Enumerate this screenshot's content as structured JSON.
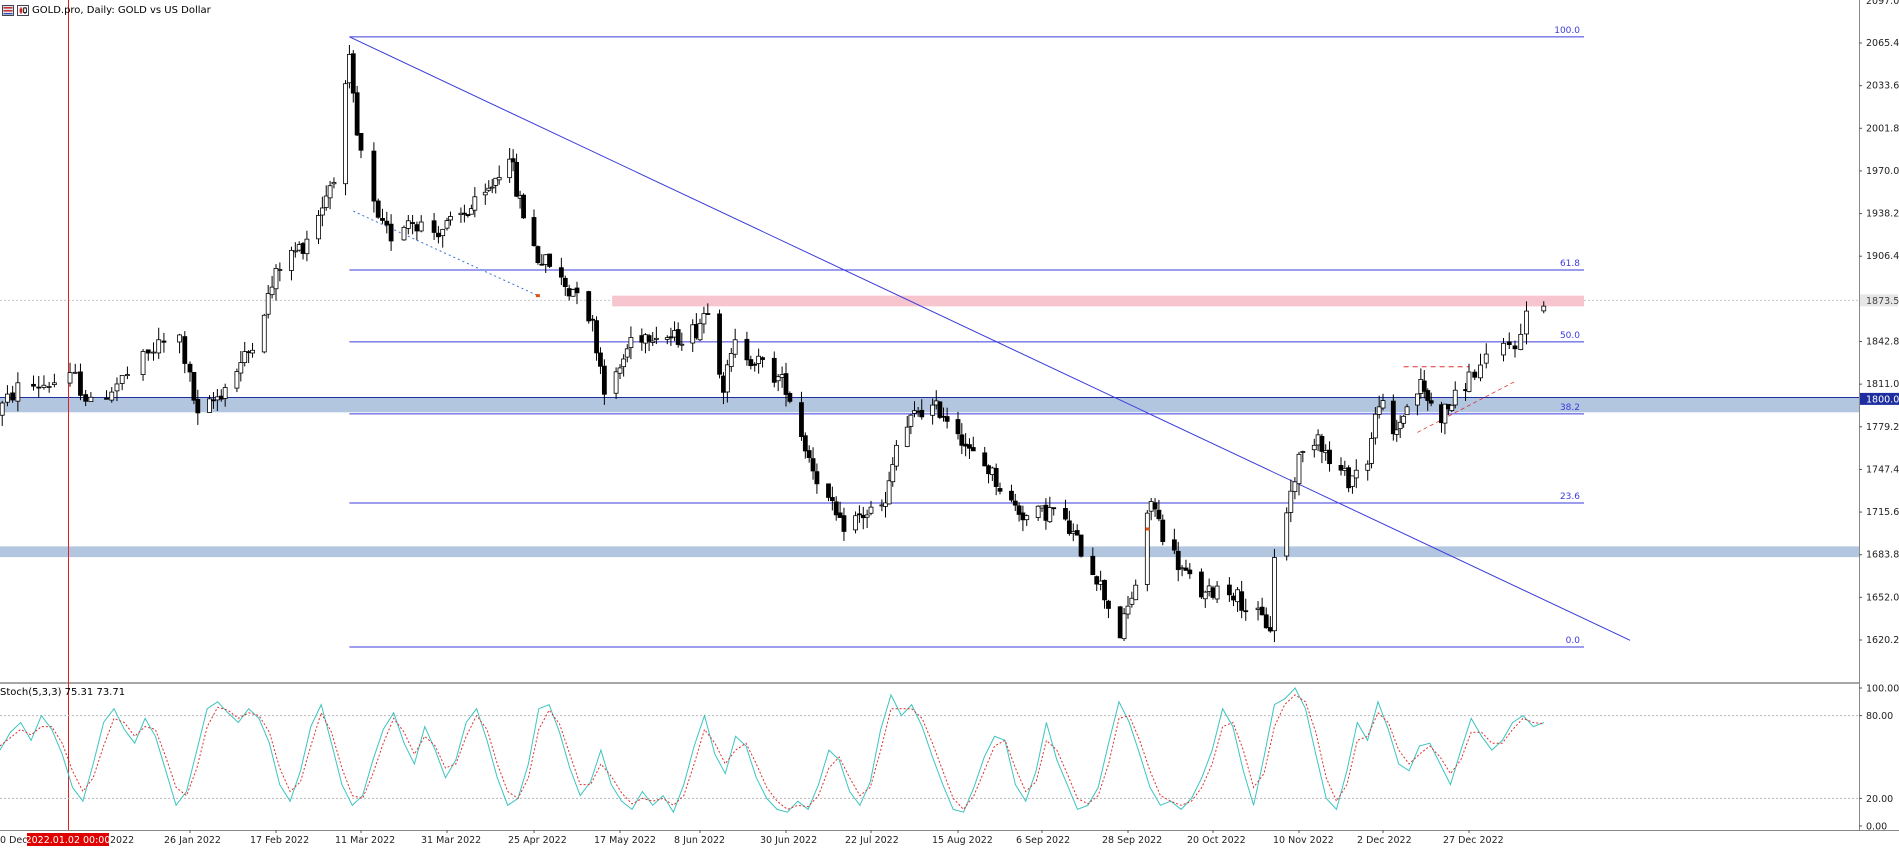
{
  "window": {
    "title": "GOLD.pro, Daily:  GOLD vs US Dollar",
    "symbol_icon": "grid-flag-icon",
    "chart_icon": "candles-chart-icon"
  },
  "colors": {
    "background": "#ffffff",
    "fib": "#3b3bdc",
    "trendline": "#3b3bdc",
    "zone_pink": "#f7c2cb",
    "zone_blue": "#aec3de",
    "crosshair": "#e02020",
    "stoch_main": "#3cc5c0",
    "stoch_signal": "#e03030",
    "candle_bull_fill": "#ffffff",
    "candle_bear_fill": "#000000",
    "price_tag_bg": "#1e2ea0",
    "date_tag_bg": "#e00000"
  },
  "chart_data": [
    {
      "type": "candlestick",
      "title": "GOLD.pro, Daily:  GOLD vs US Dollar",
      "ylim": [
        1590,
        2097
      ],
      "y_tick_labels": [
        "2097.00",
        "2065.40",
        "2033.60",
        "2001.80",
        "1970.00",
        "1938.20",
        "1906.40",
        "1873.50",
        "1842.80",
        "1811.00",
        "1800.00",
        "1779.20",
        "1747.40",
        "1715.60",
        "1683.80",
        "1652.00",
        "1620.20"
      ],
      "y_ticks": [
        2065.4,
        2033.6,
        2001.8,
        1970.0,
        1938.2,
        1906.4,
        1842.8,
        1811.0,
        1779.2,
        1747.4,
        1715.6,
        1683.8,
        1652.0,
        1620.2
      ],
      "x_tick_labels": [
        "0 Dec",
        "2022.01.02 00:00",
        "2022",
        "26 Jan 2022",
        "17 Feb 2022",
        "11 Mar 2022",
        "31 Mar 2022",
        "25 Apr 2022",
        "17 May 2022",
        "8 Jun 2022",
        "30 Jun 2022",
        "22 Jul 2022",
        "15 Aug 2022",
        "6 Sep 2022",
        "28 Sep 2022",
        "20 Oct 2022",
        "10 Nov 2022",
        "2 Dec 2022",
        "27 Dec 2022"
      ],
      "current_price_label": "1873.50",
      "level_label": "1800.00",
      "crosshair_date": "2022.01.02 00:00",
      "fibonacci": {
        "high": 2070,
        "low": 1615,
        "levels": [
          {
            "label": "100.0",
            "price": 2070.0
          },
          {
            "label": "61.8",
            "price": 1896.1
          },
          {
            "label": "50.0",
            "price": 1842.5
          },
          {
            "label": "38.2",
            "price": 1788.8
          },
          {
            "label": "23.6",
            "price": 1722.4
          },
          {
            "label": "0.0",
            "price": 1615.0
          }
        ]
      },
      "zones": [
        {
          "color": "pink",
          "from": 1869,
          "to": 1877
        },
        {
          "color": "blue",
          "from": 1790,
          "to": 1801
        },
        {
          "color": "blue",
          "from": 1682,
          "to": 1690
        }
      ],
      "trendline": {
        "start_date": "2022-03-08",
        "start_price": 2070,
        "end_date": "2023-01-24",
        "end_price": 1620
      },
      "ohlc_keypoints": [
        [
          "2021-12-20",
          1790
        ],
        [
          "2021-12-24",
          1808
        ],
        [
          "2022-01-04",
          1815
        ],
        [
          "2022-01-07",
          1795
        ],
        [
          "2022-01-14",
          1818
        ],
        [
          "2022-01-20",
          1840
        ],
        [
          "2022-01-24",
          1845
        ],
        [
          "2022-01-28",
          1785
        ],
        [
          "2022-02-03",
          1805
        ],
        [
          "2022-02-10",
          1835
        ],
        [
          "2022-02-18",
          1900
        ],
        [
          "2022-02-24",
          1915
        ],
        [
          "2022-03-01",
          1945
        ],
        [
          "2022-03-04",
          1968
        ],
        [
          "2022-03-08",
          2050
        ],
        [
          "2022-03-10",
          1995
        ],
        [
          "2022-03-15",
          1930
        ],
        [
          "2022-03-18",
          1922
        ],
        [
          "2022-03-22",
          1935
        ],
        [
          "2022-03-28",
          1925
        ],
        [
          "2022-04-01",
          1930
        ],
        [
          "2022-04-11",
          1950
        ],
        [
          "2022-04-18",
          1985
        ],
        [
          "2022-04-20",
          1955
        ],
        [
          "2022-04-26",
          1905
        ],
        [
          "2022-04-29",
          1900
        ],
        [
          "2022-05-04",
          1880
        ],
        [
          "2022-05-06",
          1885
        ],
        [
          "2022-05-10",
          1855
        ],
        [
          "2022-05-13",
          1810
        ],
        [
          "2022-05-16",
          1815
        ],
        [
          "2022-05-20",
          1845
        ],
        [
          "2022-05-26",
          1850
        ],
        [
          "2022-06-01",
          1845
        ],
        [
          "2022-06-07",
          1852
        ],
        [
          "2022-06-10",
          1870
        ],
        [
          "2022-06-14",
          1810
        ],
        [
          "2022-06-17",
          1840
        ],
        [
          "2022-06-24",
          1825
        ],
        [
          "2022-06-30",
          1810
        ],
        [
          "2022-07-05",
          1765
        ],
        [
          "2022-07-08",
          1742
        ],
        [
          "2022-07-14",
          1705
        ],
        [
          "2022-07-21",
          1715
        ],
        [
          "2022-07-26",
          1720
        ],
        [
          "2022-07-29",
          1765
        ],
        [
          "2022-08-04",
          1792
        ],
        [
          "2022-08-10",
          1792
        ],
        [
          "2022-08-15",
          1778
        ],
        [
          "2022-08-18",
          1760
        ],
        [
          "2022-08-23",
          1748
        ],
        [
          "2022-08-29",
          1722
        ],
        [
          "2022-09-02",
          1712
        ],
        [
          "2022-09-09",
          1717
        ],
        [
          "2022-09-14",
          1698
        ],
        [
          "2022-09-20",
          1668
        ],
        [
          "2022-09-26",
          1625
        ],
        [
          "2022-09-30",
          1662
        ],
        [
          "2022-10-04",
          1725
        ],
        [
          "2022-10-07",
          1700
        ],
        [
          "2022-10-12",
          1672
        ],
        [
          "2022-10-18",
          1652
        ],
        [
          "2022-10-21",
          1660
        ],
        [
          "2022-10-25",
          1656
        ],
        [
          "2022-10-28",
          1645
        ],
        [
          "2022-11-03",
          1630
        ],
        [
          "2022-11-04",
          1680
        ],
        [
          "2022-11-10",
          1755
        ],
        [
          "2022-11-15",
          1775
        ],
        [
          "2022-11-18",
          1752
        ],
        [
          "2022-11-23",
          1740
        ],
        [
          "2022-11-28",
          1755
        ],
        [
          "2022-12-01",
          1800
        ],
        [
          "2022-12-05",
          1770
        ],
        [
          "2022-12-08",
          1790
        ],
        [
          "2022-12-13",
          1810
        ],
        [
          "2022-12-16",
          1795
        ],
        [
          "2022-12-19",
          1788
        ],
        [
          "2022-12-23",
          1800
        ],
        [
          "2022-12-28",
          1820
        ],
        [
          "2023-01-02",
          1838
        ],
        [
          "2023-01-05",
          1845
        ],
        [
          "2023-01-06",
          1866
        ],
        [
          "2023-01-09",
          1875
        ]
      ]
    },
    {
      "type": "line",
      "title": "Stoch(5,3,3) 75.31 73.71",
      "indicator": "Stoch(5,3,3)",
      "values_label": "75.31 73.71",
      "ylim": [
        0,
        100
      ],
      "y_tick_labels": [
        "100.00",
        "80.00",
        "20.00",
        "0.00"
      ],
      "levels": [
        80,
        20
      ],
      "series": [
        {
          "name": "main",
          "values": [
            55,
            68,
            75,
            62,
            80,
            70,
            52,
            28,
            18,
            45,
            75,
            85,
            70,
            60,
            78,
            65,
            40,
            15,
            25,
            55,
            85,
            90,
            82,
            75,
            85,
            78,
            60,
            30,
            18,
            40,
            72,
            88,
            60,
            30,
            15,
            22,
            48,
            70,
            82,
            60,
            45,
            72,
            55,
            35,
            48,
            75,
            85,
            62,
            35,
            15,
            20,
            45,
            85,
            88,
            68,
            42,
            22,
            32,
            55,
            30,
            18,
            12,
            25,
            15,
            22,
            10,
            30,
            58,
            80,
            52,
            38,
            65,
            58,
            35,
            20,
            12,
            10,
            18,
            12,
            30,
            55,
            48,
            25,
            15,
            32,
            70,
            95,
            80,
            88,
            72,
            50,
            30,
            12,
            10,
            28,
            50,
            65,
            62,
            30,
            18,
            40,
            75,
            48,
            30,
            12,
            15,
            28,
            60,
            90,
            75,
            52,
            28,
            15,
            18,
            12,
            20,
            35,
            55,
            85,
            72,
            40,
            15,
            50,
            88,
            92,
            100,
            85,
            52,
            20,
            12,
            40,
            75,
            62,
            90,
            70,
            45,
            40,
            58,
            60,
            45,
            30,
            55,
            78,
            65,
            55,
            62,
            75,
            80,
            72,
            75
          ]
        },
        {
          "name": "signal",
          "values": [
            58,
            64,
            70,
            66,
            72,
            72,
            60,
            40,
            25,
            35,
            58,
            78,
            75,
            65,
            72,
            70,
            50,
            28,
            22,
            42,
            72,
            86,
            84,
            78,
            82,
            80,
            68,
            42,
            25,
            32,
            58,
            82,
            68,
            42,
            22,
            20,
            38,
            60,
            78,
            68,
            52,
            65,
            58,
            42,
            45,
            65,
            80,
            70,
            45,
            25,
            20,
            35,
            70,
            84,
            74,
            52,
            30,
            30,
            45,
            36,
            24,
            16,
            20,
            18,
            20,
            15,
            22,
            45,
            70,
            60,
            45,
            55,
            60,
            45,
            28,
            18,
            12,
            15,
            14,
            22,
            42,
            50,
            35,
            22,
            28,
            55,
            85,
            85,
            85,
            78,
            60,
            40,
            20,
            12,
            22,
            40,
            58,
            62,
            42,
            25,
            32,
            62,
            55,
            38,
            20,
            16,
            22,
            45,
            78,
            80,
            62,
            40,
            22,
            18,
            15,
            18,
            28,
            45,
            72,
            75,
            55,
            28,
            38,
            72,
            88,
            95,
            90,
            68,
            35,
            18,
            30,
            62,
            65,
            82,
            75,
            55,
            45,
            52,
            58,
            50,
            38,
            48,
            68,
            68,
            60,
            60,
            70,
            78,
            75,
            74
          ]
        }
      ]
    }
  ]
}
